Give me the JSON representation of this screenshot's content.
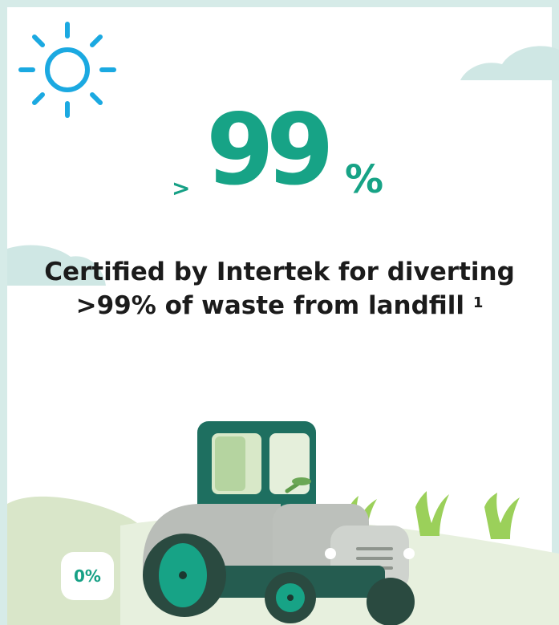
{
  "stat": {
    "prefix": ">",
    "number": "99",
    "unit": "%"
  },
  "headline": {
    "line1": "Certified by Intertek for diverting",
    "line2": ">99% of waste from landfill",
    "footnote": "1"
  },
  "badge": {
    "label": "0%"
  },
  "colors": {
    "accent": "#17a386",
    "sun": "#1ba9e1",
    "border": "#d6ebe8",
    "text": "#1b1b1b"
  },
  "icons": [
    "sun-icon",
    "cloud-icon",
    "tractor-icon",
    "grass-icon"
  ]
}
